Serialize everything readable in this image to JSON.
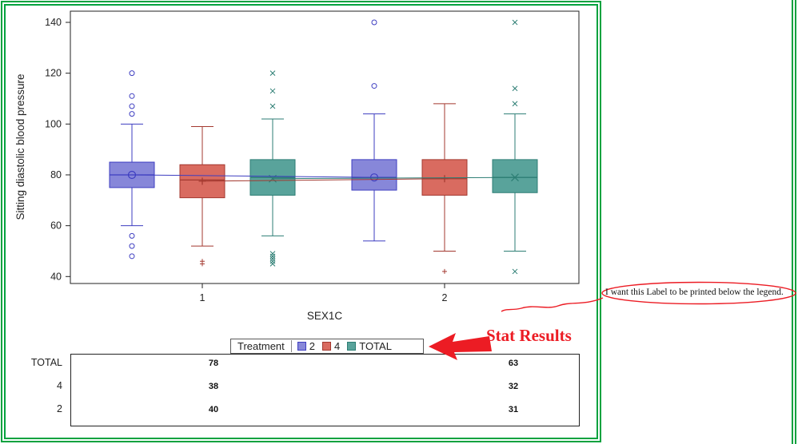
{
  "chart_data": {
    "type": "boxplot",
    "title": "",
    "ylabel": "Sitting diastolic blood pressure",
    "xlabel": "SEX1C",
    "ylim": [
      37,
      144
    ],
    "yticks": [
      40,
      60,
      80,
      100,
      120,
      140
    ],
    "categories": [
      "1",
      "2"
    ],
    "legend": {
      "title": "Treatment",
      "position": "bottom"
    },
    "series": [
      {
        "name": "2",
        "marker": "circle",
        "fill": "#8787d9",
        "stroke": "#3e3ec1",
        "boxes": [
          {
            "category": "1",
            "low": 60,
            "q1": 75,
            "median": 80,
            "q3": 85,
            "high": 100,
            "mean": 80,
            "outliers": [
              120,
              111,
              107,
              104,
              56,
              52,
              48
            ]
          },
          {
            "category": "2",
            "low": 54,
            "q1": 74,
            "median": 79,
            "q3": 86,
            "high": 104,
            "mean": 79,
            "outliers": [
              140,
              115
            ]
          }
        ]
      },
      {
        "name": "4",
        "marker": "plus",
        "fill": "#d96b60",
        "stroke": "#a3382f",
        "boxes": [
          {
            "category": "1",
            "low": 52,
            "q1": 71,
            "median": 78,
            "q3": 84,
            "high": 99,
            "mean": 77.5,
            "outliers": [
              46,
              45
            ]
          },
          {
            "category": "2",
            "low": 50,
            "q1": 72,
            "median": 78.5,
            "q3": 86,
            "high": 108,
            "mean": 78.5,
            "outliers": [
              42
            ]
          }
        ]
      },
      {
        "name": "TOTAL",
        "marker": "x",
        "fill": "#59a39b",
        "stroke": "#2d7e74",
        "boxes": [
          {
            "category": "1",
            "low": 56,
            "q1": 72,
            "median": 79,
            "q3": 86,
            "high": 102,
            "mean": 78.5,
            "outliers": [
              120,
              113,
              107,
              49,
              48,
              47,
              46,
              45
            ]
          },
          {
            "category": "2",
            "low": 50,
            "q1": 73,
            "median": 79,
            "q3": 86,
            "high": 104,
            "mean": 79,
            "outliers": [
              140,
              114,
              108,
              42
            ]
          }
        ]
      }
    ],
    "stat_table": {
      "rows": [
        {
          "label": "TOTAL",
          "values": [
            "78",
            "63"
          ]
        },
        {
          "label": "4",
          "values": [
            "38",
            "32"
          ]
        },
        {
          "label": "2",
          "values": [
            "40",
            "31"
          ]
        }
      ]
    }
  },
  "annotations": {
    "stat_results": "Stat Results",
    "note": "I want this Label to be printed below the legend."
  },
  "colors": {
    "frame_green": "#00a23e",
    "annotation_red": "#ec1c24"
  }
}
